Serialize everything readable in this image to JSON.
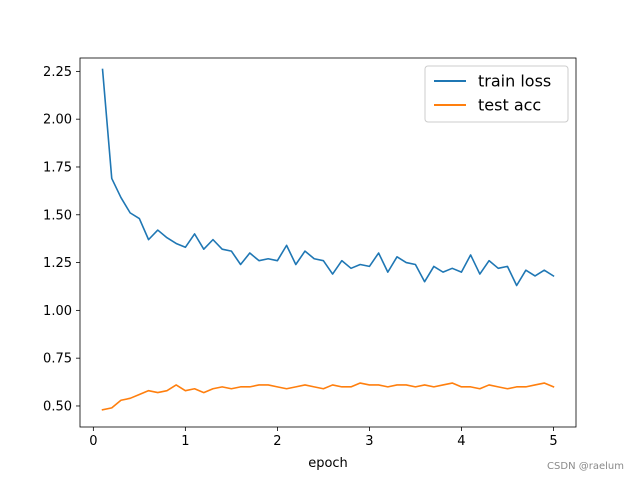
{
  "chart_data": {
    "type": "line",
    "xlabel": "epoch",
    "ylabel": "",
    "xlim": [
      -0.145,
      5.245
    ],
    "ylim": [
      0.39,
      2.32
    ],
    "xticks": [
      0,
      1,
      2,
      3,
      4,
      5
    ],
    "xtick_labels": [
      "0",
      "1",
      "2",
      "3",
      "4",
      "5"
    ],
    "yticks": [
      0.5,
      0.75,
      1.0,
      1.25,
      1.5,
      1.75,
      2.0,
      2.25
    ],
    "ytick_labels": [
      "0.50",
      "0.75",
      "1.00",
      "1.25",
      "1.50",
      "1.75",
      "2.00",
      "2.25"
    ],
    "grid": false,
    "legend_position": "top-right",
    "x": [
      0.1,
      0.2,
      0.3,
      0.4,
      0.5,
      0.6,
      0.7,
      0.8,
      0.9,
      1.0,
      1.1,
      1.2,
      1.3,
      1.4,
      1.5,
      1.6,
      1.7,
      1.8,
      1.9,
      2.0,
      2.1,
      2.2,
      2.3,
      2.4,
      2.5,
      2.6,
      2.7,
      2.8,
      2.9,
      3.0,
      3.1,
      3.2,
      3.3,
      3.4,
      3.5,
      3.6,
      3.7,
      3.8,
      3.9,
      4.0,
      4.1,
      4.2,
      4.3,
      4.4,
      4.5,
      4.6,
      4.7,
      4.8,
      4.9,
      5.0
    ],
    "series": [
      {
        "name": "train loss",
        "color": "#1f77b4",
        "values": [
          2.26,
          1.69,
          1.59,
          1.51,
          1.48,
          1.37,
          1.42,
          1.38,
          1.35,
          1.33,
          1.4,
          1.32,
          1.37,
          1.32,
          1.31,
          1.24,
          1.3,
          1.26,
          1.27,
          1.26,
          1.34,
          1.24,
          1.31,
          1.27,
          1.26,
          1.19,
          1.26,
          1.22,
          1.24,
          1.23,
          1.3,
          1.2,
          1.28,
          1.25,
          1.24,
          1.15,
          1.23,
          1.2,
          1.22,
          1.2,
          1.29,
          1.19,
          1.26,
          1.22,
          1.23,
          1.13,
          1.21,
          1.18,
          1.21,
          1.18
        ]
      },
      {
        "name": "test acc",
        "color": "#ff7f0e",
        "values": [
          0.48,
          0.49,
          0.53,
          0.54,
          0.56,
          0.58,
          0.57,
          0.58,
          0.61,
          0.58,
          0.59,
          0.57,
          0.59,
          0.6,
          0.59,
          0.6,
          0.6,
          0.61,
          0.61,
          0.6,
          0.59,
          0.6,
          0.61,
          0.6,
          0.59,
          0.61,
          0.6,
          0.6,
          0.62,
          0.61,
          0.61,
          0.6,
          0.61,
          0.61,
          0.6,
          0.61,
          0.6,
          0.61,
          0.62,
          0.6,
          0.6,
          0.59,
          0.61,
          0.6,
          0.59,
          0.6,
          0.6,
          0.61,
          0.62,
          0.6
        ]
      }
    ]
  },
  "watermark": "CSDN @raelum"
}
